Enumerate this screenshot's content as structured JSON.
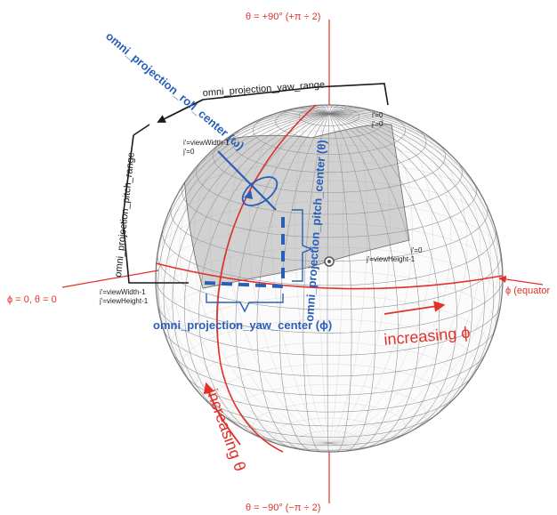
{
  "colors": {
    "red": "#e0312b",
    "blue": "#2a5fb8",
    "blue_dark": "#1f3f9e",
    "grid": "#7a7a7a",
    "shade": "#a8a8a8",
    "black": "#1a1a1a"
  },
  "labels": {
    "theta_top": "θ = +90° (+π ÷ 2)",
    "theta_bottom": "θ = −90° (−π ÷ 2)",
    "phi_zero": "ϕ = 0, θ = 0",
    "equator": "ϕ (equator",
    "increasing_phi": "increasing ϕ",
    "increasing_theta": "increasing θ",
    "yaw_range": "omni_projection_yaw_range",
    "pitch_range": "omni_projection_pitch_range",
    "roll_center": "omni_projection_roll_center (ω)",
    "pitch_center": "omni_projection_pitch_center (θ)",
    "yaw_center": "omni_projection_yaw_center (ϕ)",
    "c_tl_1": "i'=viewWidth-1",
    "c_tl_2": "j'=0",
    "c_tr_1": "i'=0",
    "c_tr_2": "j'=0",
    "c_br_1": "i'=0",
    "c_br_2": "j'=viewHeight-1",
    "c_bl_1": "i'=viewWidth-1",
    "c_bl_2": "j'=viewHeight-1"
  }
}
